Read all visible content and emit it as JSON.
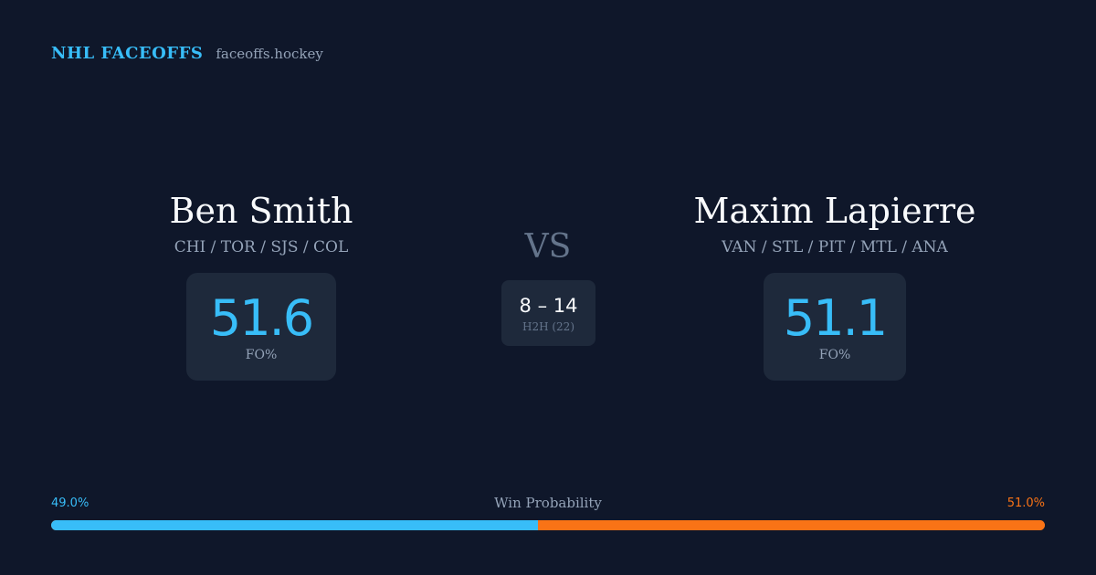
{
  "brand": {
    "title": "NHL FACEOFFS",
    "site": "faceoffs.hockey"
  },
  "player_left": {
    "name": "Ben Smith",
    "teams": "CHI / TOR / SJS / COL",
    "stat_value": "51.6",
    "stat_label": "FO%"
  },
  "player_right": {
    "name": "Maxim Lapierre",
    "teams": "VAN / STL / PIT / MTL / ANA",
    "stat_value": "51.1",
    "stat_label": "FO%"
  },
  "versus": {
    "label": "VS",
    "h2h_score": "8 – 14",
    "h2h_label": "H2H (22)"
  },
  "win_probability": {
    "title": "Win Probability",
    "left_label": "49.0%",
    "right_label": "51.0%",
    "left_fraction": 0.49,
    "right_fraction": 0.51
  },
  "colors": {
    "background": "#0f172a",
    "card": "#1e293b",
    "accent_left": "#38bdf8",
    "accent_right": "#f97316",
    "muted": "#94a3b8"
  }
}
